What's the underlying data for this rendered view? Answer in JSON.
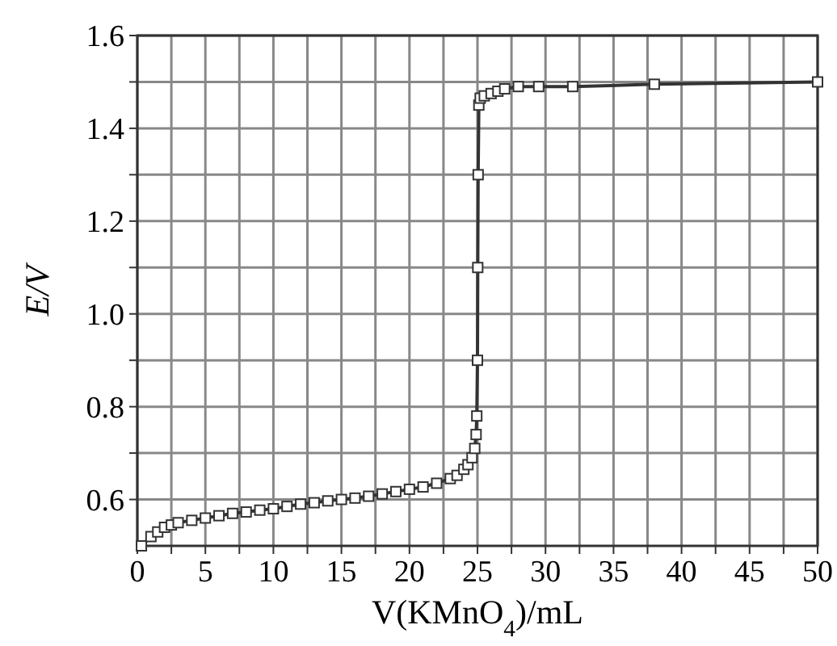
{
  "chart_data": {
    "type": "line",
    "xlabel": "V(KMnO$_{4}$)/mL",
    "ylabel": "E/V",
    "xlim": [
      0,
      50
    ],
    "ylim": [
      0.5,
      1.6
    ],
    "xticks": [
      0,
      {
        "value": 2.5,
        "label": null
      },
      5,
      {
        "value": 7.5,
        "label": null
      },
      10,
      {
        "value": 12.5,
        "label": null
      },
      15,
      {
        "value": 17.5,
        "label": null
      },
      20,
      {
        "value": 22.5,
        "label": null
      },
      25,
      {
        "value": 27.5,
        "label": null
      },
      30,
      {
        "value": 32.5,
        "label": null
      },
      35,
      {
        "value": 37.5,
        "label": null
      },
      40,
      {
        "value": 42.5,
        "label": null
      },
      45,
      {
        "value": 47.5,
        "label": null
      },
      50
    ],
    "yticks": [
      {
        "value": 0.6,
        "label": "0.6"
      },
      {
        "value": 0.7,
        "label": null
      },
      {
        "value": 0.8,
        "label": "0.8"
      },
      {
        "value": 0.9,
        "label": null
      },
      {
        "value": 1.0,
        "label": "1.0"
      },
      {
        "value": 1.1,
        "label": null
      },
      {
        "value": 1.2,
        "label": "1.2"
      },
      {
        "value": 1.3,
        "label": null
      },
      {
        "value": 1.4,
        "label": "1.4"
      },
      {
        "value": 1.5,
        "label": null
      },
      {
        "value": 1.6,
        "label": "1.6"
      }
    ],
    "grid": true,
    "marker": "square",
    "line_style": "solid",
    "series": [
      {
        "color": "#333333",
        "x": [
          0.3,
          1,
          1.5,
          2,
          2.5,
          3,
          4,
          5,
          6,
          7,
          8,
          9,
          10,
          11,
          12,
          13,
          14,
          15,
          16,
          17,
          18,
          19,
          20,
          21,
          22,
          23,
          23.5,
          24,
          24.3,
          24.6,
          24.8,
          24.9,
          24.95,
          25,
          25.02,
          25.05,
          25.1,
          25.2,
          25.5,
          26,
          26.5,
          27,
          28,
          29.5,
          32,
          38,
          50
        ],
        "values": [
          0.5,
          0.52,
          0.53,
          0.54,
          0.545,
          0.55,
          0.555,
          0.56,
          0.565,
          0.57,
          0.573,
          0.577,
          0.58,
          0.585,
          0.59,
          0.593,
          0.597,
          0.6,
          0.603,
          0.607,
          0.612,
          0.617,
          0.622,
          0.627,
          0.635,
          0.645,
          0.652,
          0.665,
          0.675,
          0.69,
          0.71,
          0.74,
          0.78,
          0.9,
          1.1,
          1.3,
          1.45,
          1.465,
          1.47,
          1.475,
          1.48,
          1.485,
          1.49,
          1.49,
          1.49,
          1.495,
          1.5
        ]
      }
    ]
  }
}
